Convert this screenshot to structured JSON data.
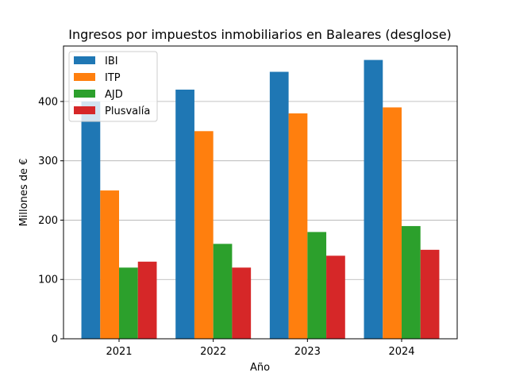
{
  "chart_data": {
    "type": "bar",
    "title": "Ingresos por impuestos inmobiliarios en Baleares (desglose)",
    "xlabel": "Año",
    "ylabel": "Millones de €",
    "categories": [
      "2021",
      "2022",
      "2023",
      "2024"
    ],
    "series": [
      {
        "name": "IBI",
        "values": [
          400,
          420,
          450,
          470
        ],
        "color": "#1f77b4"
      },
      {
        "name": "ITP",
        "values": [
          250,
          350,
          380,
          390
        ],
        "color": "#ff7f0e"
      },
      {
        "name": "AJD",
        "values": [
          120,
          160,
          180,
          190
        ],
        "color": "#2ca02c"
      },
      {
        "name": "Plusvalía",
        "values": [
          130,
          120,
          140,
          150
        ],
        "color": "#d62728"
      }
    ],
    "ylim": [
      0,
      493.5
    ],
    "yticks": [
      0,
      100,
      200,
      300,
      400
    ],
    "grid": "y",
    "legend": "top-left"
  }
}
